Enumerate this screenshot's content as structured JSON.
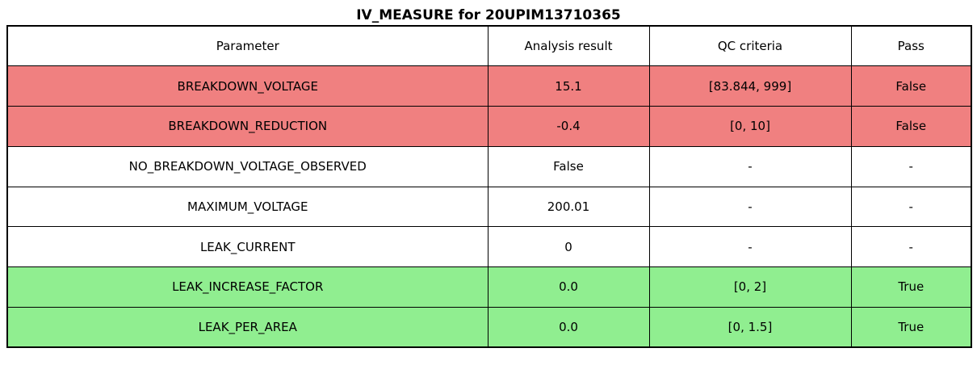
{
  "chart_data": {
    "type": "table",
    "title": "IV_MEASURE for 20UPIM13710365",
    "columns": [
      "Parameter",
      "Analysis result",
      "QC criteria",
      "Pass"
    ],
    "rows": [
      [
        "BREAKDOWN_VOLTAGE",
        "15.1",
        "[83.844, 999]",
        "False"
      ],
      [
        "BREAKDOWN_REDUCTION",
        "-0.4",
        "[0, 10]",
        "False"
      ],
      [
        "NO_BREAKDOWN_VOLTAGE_OBSERVED",
        "False",
        "-",
        "-"
      ],
      [
        "MAXIMUM_VOLTAGE",
        "200.01",
        "-",
        "-"
      ],
      [
        "LEAK_CURRENT",
        "0",
        "-",
        "-"
      ],
      [
        "LEAK_INCREASE_FACTOR",
        "0.0",
        "[0, 2]",
        "True"
      ],
      [
        "LEAK_PER_AREA",
        "0.0",
        "[0, 1.5]",
        "True"
      ]
    ],
    "row_status": [
      "fail",
      "fail",
      "neutral",
      "neutral",
      "neutral",
      "pass",
      "pass"
    ],
    "legend_position": "none",
    "grid": true
  },
  "colors": {
    "fail": "#f08080",
    "pass": "#90ee90",
    "neutral": "#ffffff",
    "border": "#000000",
    "title_text": "#000000"
  }
}
